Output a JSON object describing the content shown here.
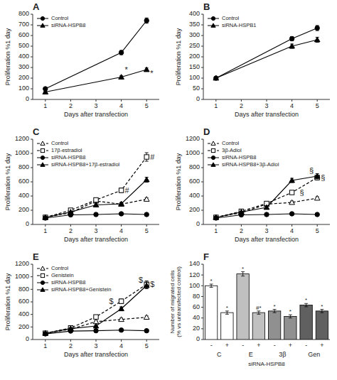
{
  "chart_data": [
    {
      "type": "line",
      "title": "A",
      "x": [
        1,
        4,
        5
      ],
      "xlim": [
        0.5,
        5.5
      ],
      "xticks": [
        1,
        2,
        3,
        4,
        5
      ],
      "ylim": [
        0,
        800
      ],
      "yticks": [
        0,
        100,
        200,
        300,
        400,
        500,
        600,
        700,
        800
      ],
      "xlabel": "Days after transfection",
      "ylabel": "Proliferation %1 day",
      "legend": "upper left",
      "grid": false,
      "series": [
        {
          "name": "Control",
          "color": "black",
          "marker": "circle",
          "line_style": "solid",
          "values": [
            100,
            440,
            740
          ],
          "errors": [
            5,
            20,
            25
          ]
        },
        {
          "name": "siRNA-HSPB8",
          "color": "black",
          "marker": "triangle",
          "line_style": "solid",
          "values": [
            70,
            210,
            280
          ],
          "errors": [
            5,
            12,
            15
          ]
        }
      ],
      "annotations": [
        {
          "text": "*",
          "x": 4,
          "y": 225
        },
        {
          "text": "*",
          "x": 5,
          "y": 250
        }
      ]
    },
    {
      "type": "line",
      "title": "B",
      "x": [
        1,
        4,
        5
      ],
      "xlim": [
        0.5,
        5.5
      ],
      "xticks": [
        1,
        2,
        3,
        4,
        5
      ],
      "ylim": [
        0,
        400
      ],
      "yticks": [
        0,
        50,
        100,
        150,
        200,
        250,
        300,
        350,
        400
      ],
      "xlabel": "Days after transfection",
      "ylabel": "Proliferation %1 day",
      "legend": "upper left",
      "grid": false,
      "series": [
        {
          "name": "Control",
          "color": "black",
          "marker": "circle",
          "line_style": "solid",
          "values": [
            100,
            285,
            335
          ],
          "errors": [
            4,
            10,
            12
          ]
        },
        {
          "name": "siRNA-HSPB1",
          "color": "black",
          "marker": "triangle",
          "line_style": "solid",
          "values": [
            100,
            250,
            280
          ],
          "errors": [
            4,
            10,
            12
          ]
        }
      ]
    },
    {
      "type": "line",
      "title": "C",
      "x": [
        1,
        2,
        3,
        4,
        5
      ],
      "xlim": [
        0.5,
        5.5
      ],
      "xticks": [
        1,
        2,
        3,
        4,
        5
      ],
      "ylim": [
        0,
        1200
      ],
      "yticks": [
        0,
        200,
        400,
        600,
        800,
        1000,
        1200
      ],
      "xlabel": "Days after transfection",
      "ylabel": "Proliferation %1 day",
      "legend": "upper left",
      "grid": false,
      "series": [
        {
          "name": "Control",
          "color": "black",
          "marker": "triangle-open",
          "line_style": "dashed",
          "values": [
            100,
            165,
            330,
            285,
            355
          ],
          "errors": [
            5,
            10,
            15,
            20,
            20
          ]
        },
        {
          "name": "17β-estradiol",
          "color": "black",
          "marker": "square-open",
          "line_style": "dashed",
          "values": [
            100,
            200,
            345,
            480,
            950
          ],
          "errors": [
            5,
            12,
            20,
            30,
            60
          ]
        },
        {
          "name": "siRNA-HSPB8",
          "color": "black",
          "marker": "circle",
          "line_style": "solid",
          "values": [
            90,
            135,
            140,
            150,
            140
          ],
          "errors": [
            5,
            8,
            8,
            15,
            10
          ]
        },
        {
          "name": "siRNA-HSPB8+17β-estradiol",
          "color": "black",
          "marker": "triangle",
          "line_style": "solid",
          "values": [
            100,
            175,
            275,
            290,
            630
          ],
          "errors": [
            5,
            10,
            15,
            20,
            35
          ]
        }
      ],
      "annotations": [
        {
          "text": "#",
          "x": 4,
          "y": 480
        },
        {
          "text": "#",
          "x": 5,
          "y": 950
        }
      ]
    },
    {
      "type": "line",
      "title": "D",
      "x": [
        1,
        2,
        3,
        4,
        5
      ],
      "xlim": [
        0.5,
        5.5
      ],
      "xticks": [
        1,
        2,
        3,
        4,
        5
      ],
      "ylim": [
        0,
        1200
      ],
      "yticks": [
        0,
        200,
        400,
        600,
        800,
        1000,
        1200
      ],
      "xlabel": "Days after transfection",
      "ylabel": "Proliferation %1 day",
      "legend": "upper left",
      "grid": false,
      "series": [
        {
          "name": "Control",
          "color": "black",
          "marker": "triangle-open",
          "line_style": "dashed",
          "values": [
            100,
            165,
            285,
            310,
            370
          ],
          "errors": [
            5,
            10,
            15,
            20,
            20
          ]
        },
        {
          "name": "3β-Adiol",
          "color": "black",
          "marker": "square-open",
          "line_style": "dashed",
          "values": [
            100,
            185,
            295,
            450,
            660
          ],
          "errors": [
            5,
            12,
            18,
            25,
            35
          ]
        },
        {
          "name": "siRNA-HSPB8",
          "color": "black",
          "marker": "circle",
          "line_style": "solid",
          "values": [
            90,
            135,
            140,
            150,
            140
          ],
          "errors": [
            5,
            8,
            8,
            15,
            10
          ]
        },
        {
          "name": "siRNA-HSPB8+3β-Adiol",
          "color": "black",
          "marker": "triangle",
          "line_style": "solid",
          "values": [
            100,
            175,
            240,
            620,
            680
          ],
          "errors": [
            5,
            10,
            15,
            30,
            35
          ]
        }
      ],
      "annotations": [
        {
          "text": "§",
          "x": 4,
          "y": 450
        },
        {
          "text": "§",
          "x": 5,
          "y": 660
        },
        {
          "text": "§",
          "x": 5,
          "y": 680
        }
      ]
    },
    {
      "type": "line",
      "title": "E",
      "x": [
        1,
        2,
        3,
        4,
        5
      ],
      "xlim": [
        0.5,
        5.5
      ],
      "xticks": [
        1,
        2,
        3,
        4,
        5
      ],
      "ylim": [
        0,
        1200
      ],
      "yticks": [
        0,
        200,
        400,
        600,
        800,
        1000,
        1200
      ],
      "xlabel": "Days after transfection",
      "ylabel": "Proliferation %1 day",
      "legend": "upper left",
      "grid": false,
      "series": [
        {
          "name": "Control",
          "color": "black",
          "marker": "triangle-open",
          "line_style": "dashed",
          "values": [
            100,
            165,
            285,
            320,
            355
          ],
          "errors": [
            5,
            10,
            15,
            20,
            20
          ]
        },
        {
          "name": "Genistein",
          "color": "black",
          "marker": "square-open",
          "line_style": "dashed",
          "values": [
            100,
            185,
            360,
            610,
            880
          ],
          "errors": [
            5,
            12,
            20,
            35,
            55
          ]
        },
        {
          "name": "siRNA-HSPB8",
          "color": "black",
          "marker": "circle",
          "line_style": "solid",
          "values": [
            90,
            135,
            140,
            150,
            140
          ],
          "errors": [
            5,
            8,
            8,
            15,
            10
          ]
        },
        {
          "name": "siRNA-HSPB8+Genistein",
          "color": "black",
          "marker": "triangle",
          "line_style": "solid",
          "values": [
            100,
            175,
            215,
            490,
            860
          ],
          "errors": [
            5,
            10,
            15,
            30,
            50
          ]
        }
      ],
      "annotations": [
        {
          "text": "$",
          "x": 4,
          "y": 610
        },
        {
          "text": "$",
          "x": 5,
          "y": 880
        },
        {
          "text": "$",
          "x": 5,
          "y": 860
        }
      ]
    },
    {
      "type": "bar",
      "title": "F",
      "categories": [
        "-",
        "+",
        "-",
        "+",
        "-",
        "+",
        "-",
        "+"
      ],
      "values": [
        100,
        50,
        122,
        50,
        53,
        43,
        64,
        53
      ],
      "errors": [
        3,
        3,
        4,
        3,
        3,
        3,
        3,
        3
      ],
      "colors": [
        "white",
        "white",
        "#c0c0c0",
        "#c0c0c0",
        "#909090",
        "#909090",
        "#606060",
        "#606060"
      ],
      "group_labels": [
        "C",
        "E",
        "3β",
        "Gen"
      ],
      "ylim": [
        0,
        140
      ],
      "yticks": [
        0,
        20,
        40,
        60,
        80,
        100,
        120,
        140
      ],
      "ylabel": "Number of migrated cells\n(% vs untransfected control)",
      "xlabel": "siRNA-HSPB8",
      "grid": false,
      "annotations": [
        {
          "text": "*",
          "x": 0,
          "y": 103
        },
        {
          "text": "*",
          "x": 1,
          "y": 53
        },
        {
          "text": "*",
          "x": 2,
          "y": 126
        },
        {
          "text": "#*",
          "x": 3,
          "y": 53
        },
        {
          "text": "*",
          "x": 4,
          "y": 56
        },
        {
          "text": "*",
          "x": 5,
          "y": 46
        },
        {
          "text": "*",
          "x": 6,
          "y": 67
        },
        {
          "text": "*",
          "x": 7,
          "y": 56
        }
      ]
    }
  ]
}
